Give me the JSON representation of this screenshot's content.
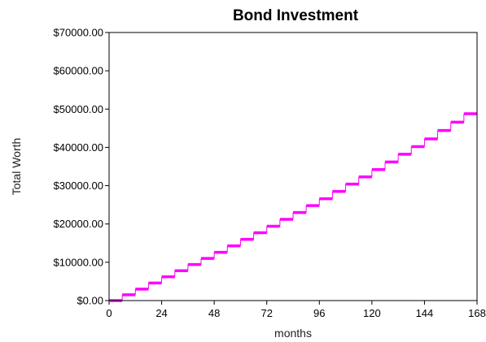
{
  "chart_data": {
    "type": "line",
    "title": "Bond Investment",
    "xlabel": "months",
    "ylabel": "Total Worth",
    "xlim": [
      0,
      168
    ],
    "ylim": [
      0,
      70000
    ],
    "x_ticks": [
      0,
      24,
      48,
      72,
      96,
      120,
      144,
      168
    ],
    "x_tick_labels": [
      "0",
      "24",
      "48",
      "72",
      "96",
      "120",
      "144",
      "168"
    ],
    "y_ticks": [
      0,
      10000,
      20000,
      30000,
      40000,
      50000,
      60000,
      70000
    ],
    "y_tick_labels": [
      "$0.00",
      "$10000.00",
      "$20000.00",
      "$30000.00",
      "$40000.00",
      "$50000.00",
      "$60000.00",
      "$70000.00"
    ],
    "grid": false,
    "step": true,
    "series": [
      {
        "color": "#ff00ff",
        "x": [
          0,
          6,
          12,
          18,
          24,
          30,
          36,
          42,
          48,
          54,
          60,
          66,
          72,
          78,
          84,
          90,
          96,
          102,
          108,
          114,
          120,
          126,
          132,
          138,
          144,
          150,
          156,
          162,
          168
        ],
        "y": [
          0,
          1500,
          3000,
          4600,
          6200,
          7800,
          9400,
          11000,
          12600,
          14300,
          16000,
          17700,
          19400,
          21200,
          23000,
          24800,
          26600,
          28500,
          30400,
          32300,
          34200,
          36200,
          38200,
          40200,
          42200,
          44400,
          46600,
          48800,
          51200
        ]
      }
    ]
  }
}
